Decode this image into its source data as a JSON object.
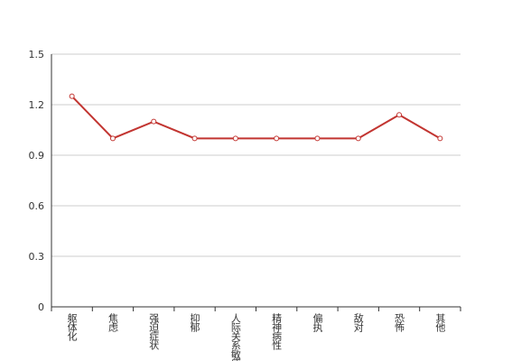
{
  "chart_data": {
    "type": "line",
    "categories": [
      "躯体化",
      "焦虑",
      "强迫症状",
      "抑郁",
      "人际关系敏感",
      "精神病性",
      "偏执",
      "敌对",
      "恐怖",
      "其他"
    ],
    "series": [
      {
        "color": "#c23531",
        "values": [
          1.25,
          1.0,
          1.1,
          1.0,
          1.0,
          1.0,
          1.0,
          1.0,
          1.14,
          1.0
        ]
      }
    ],
    "ylim": [
      0,
      1.5
    ],
    "yticks": [
      0,
      0.3,
      0.6,
      0.9,
      1.2,
      1.5
    ],
    "grid": true
  }
}
